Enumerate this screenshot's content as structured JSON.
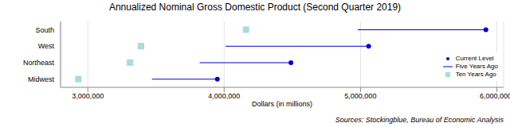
{
  "chart_data": {
    "type": "dumbbell",
    "orientation": "horizontal",
    "title": "Annualized Nominal Gross Domestic Product (Second Quarter 2019)",
    "x_label": "Dollars (in millions)",
    "source": "Sources: Stockingblue, Bureau of Economic Analysis",
    "categories": [
      "South",
      "West",
      "Northeast",
      "Midwest"
    ],
    "series": [
      {
        "name": "Current Level",
        "color": "#0000cd",
        "marker": "circle",
        "values": [
          5920000,
          5060000,
          4490000,
          3950000
        ]
      },
      {
        "name": "Five Years Ago",
        "color": "#0000cd",
        "marker": "line",
        "values": [
          4980000,
          4010000,
          3820000,
          3470000
        ]
      },
      {
        "name": "Ten Years Ago",
        "color": "#a6dcdc",
        "marker": "square",
        "values": [
          4160000,
          3390000,
          3310000,
          2930000
        ]
      }
    ],
    "xlim": [
      2800000,
      6050000
    ],
    "xticks": [
      {
        "value": 3000000,
        "label": "3,000,000"
      },
      {
        "value": 4000000,
        "label": "4,000,000"
      },
      {
        "value": 5000000,
        "label": "5,000,000"
      },
      {
        "value": 6000000,
        "label": "6,000,000"
      }
    ],
    "grid": true,
    "legend": "lower right"
  }
}
